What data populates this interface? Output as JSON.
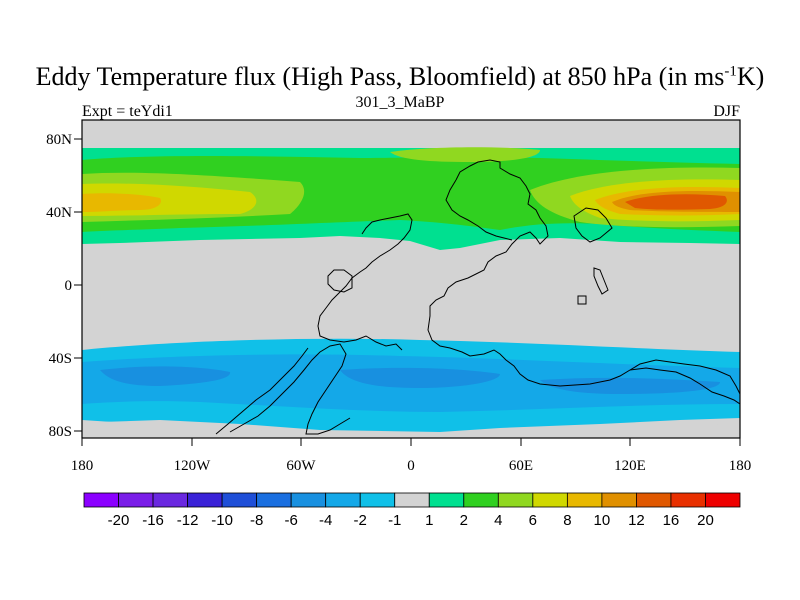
{
  "title": {
    "main": "Eddy Temperature flux (High Pass, Bloomfield) at 850 hPa (in ms",
    "sup": "-1",
    "tail": "K)"
  },
  "subtitle": {
    "left": "Expt = teYdi1",
    "center": "301_3_MaBP",
    "right": "DJF"
  },
  "axes": {
    "x_ticks": [
      "180",
      "120W",
      "60W",
      "0",
      "60E",
      "120E",
      "180"
    ],
    "y_ticks": [
      "80N",
      "40N",
      "0",
      "40S",
      "80S"
    ]
  },
  "colorbar": {
    "labels": [
      "-20",
      "-16",
      "-12",
      "-10",
      "-8",
      "-6",
      "-4",
      "-2",
      "-1",
      "1",
      "2",
      "4",
      "6",
      "8",
      "10",
      "12",
      "16",
      "20"
    ],
    "colors": [
      "#8b00ff",
      "#7a1ee8",
      "#6a28e0",
      "#3a22d8",
      "#1f4fd8",
      "#1a6fe0",
      "#1890e0",
      "#14a8e8",
      "#10c0e8",
      "#d3d3d3",
      "#00e090",
      "#30d020",
      "#90d820",
      "#d0d800",
      "#e8b800",
      "#e09000",
      "#e05800",
      "#e83000",
      "#ee0000"
    ]
  },
  "colors": {
    "land_ocean_neutral": "#d3d3d3",
    "outline": "#000000"
  }
}
